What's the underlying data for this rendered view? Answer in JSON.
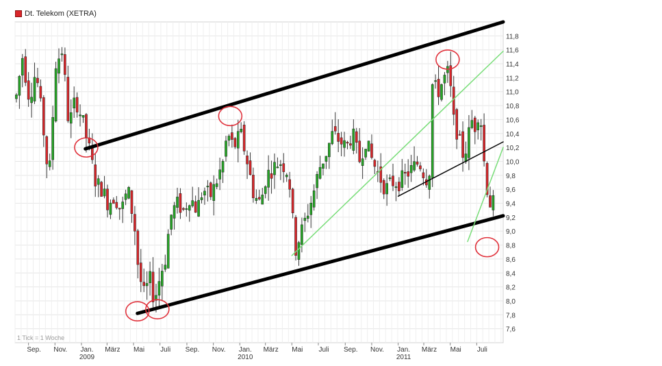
{
  "chart_data": {
    "type": "candlestick",
    "title": "",
    "legend": {
      "label": "Dt. Telekom (XETRA)",
      "placement": "top-left",
      "color": "#d9262a"
    },
    "footnote": "1 Tick = 1 Woche",
    "xlabel": "",
    "ylabel": "",
    "ylim": [
      7.4,
      12.0
    ],
    "y_ticks": [
      7.6,
      7.8,
      8.0,
      8.2,
      8.4,
      8.6,
      8.8,
      9.0,
      9.2,
      9.4,
      9.6,
      9.8,
      10.0,
      10.2,
      10.4,
      10.6,
      10.8,
      11.0,
      11.2,
      11.4,
      11.6,
      11.8
    ],
    "y_tick_labels": [
      "7,6",
      "7,8",
      "8,0",
      "8,2",
      "8,4",
      "8,6",
      "8,8",
      "9,0",
      "9,2",
      "9,4",
      "9,6",
      "9,8",
      "10,0",
      "10,2",
      "10,4",
      "10,6",
      "10,8",
      "11,0",
      "11,2",
      "11,4",
      "11,6",
      "11,8"
    ],
    "x_axis": {
      "period_start": "2008-08",
      "labels": [
        {
          "text": "Sep.",
          "date": "2008-09-01"
        },
        {
          "text": "Nov.",
          "date": "2008-11-01"
        },
        {
          "text": "Jan.",
          "date": "2009-01-01",
          "year": "2009"
        },
        {
          "text": "März",
          "date": "2009-03-01"
        },
        {
          "text": "Mai",
          "date": "2009-05-01"
        },
        {
          "text": "Juli",
          "date": "2009-07-01"
        },
        {
          "text": "Sep.",
          "date": "2009-09-01"
        },
        {
          "text": "Nov.",
          "date": "2009-11-01"
        },
        {
          "text": "Jan.",
          "date": "2010-01-01",
          "year": "2010"
        },
        {
          "text": "März",
          "date": "2010-03-01"
        },
        {
          "text": "Mai",
          "date": "2010-05-01"
        },
        {
          "text": "Juli",
          "date": "2010-07-01"
        },
        {
          "text": "Sep.",
          "date": "2010-09-01"
        },
        {
          "text": "Nov.",
          "date": "2010-11-01"
        },
        {
          "text": "Jan.",
          "date": "2011-01-01",
          "year": "2011"
        },
        {
          "text": "März",
          "date": "2011-03-01"
        },
        {
          "text": "Mai",
          "date": "2011-05-01"
        },
        {
          "text": "Juli",
          "date": "2011-07-01"
        }
      ]
    },
    "grid": true,
    "colors": {
      "up": "#26a626",
      "down": "#d9262a",
      "channel": "#000000",
      "trend_green": "#77dd77",
      "circle": "#e0303a",
      "grid": "#e6e6e6"
    },
    "price_anchors": [
      [
        "2008-08-10",
        10.9
      ],
      [
        "2008-08-25",
        11.5
      ],
      [
        "2008-09-10",
        10.9
      ],
      [
        "2008-09-25",
        11.3
      ],
      [
        "2008-10-10",
        10.6
      ],
      [
        "2008-10-25",
        9.7
      ],
      [
        "2008-11-10",
        11.4
      ],
      [
        "2008-11-25",
        11.6
      ],
      [
        "2008-12-10",
        10.5
      ],
      [
        "2008-12-25",
        10.9
      ],
      [
        "2009-01-10",
        10.6
      ],
      [
        "2009-01-25",
        10.2
      ],
      [
        "2009-02-10",
        9.7
      ],
      [
        "2009-02-25",
        9.6
      ],
      [
        "2009-03-10",
        9.4
      ],
      [
        "2009-03-25",
        9.5
      ],
      [
        "2009-04-10",
        9.3
      ],
      [
        "2009-04-25",
        9.6
      ],
      [
        "2009-05-10",
        9.1
      ],
      [
        "2009-05-20",
        8.4
      ],
      [
        "2009-06-01",
        8.1
      ],
      [
        "2009-06-15",
        8.3
      ],
      [
        "2009-06-25",
        8.0
      ],
      [
        "2009-07-10",
        8.4
      ],
      [
        "2009-07-20",
        8.6
      ],
      [
        "2009-08-01",
        9.2
      ],
      [
        "2009-08-15",
        9.4
      ],
      [
        "2009-09-01",
        9.3
      ],
      [
        "2009-09-15",
        9.5
      ],
      [
        "2009-10-01",
        9.3
      ],
      [
        "2009-10-15",
        9.6
      ],
      [
        "2009-11-01",
        9.5
      ],
      [
        "2009-11-15",
        9.7
      ],
      [
        "2009-12-01",
        10.0
      ],
      [
        "2009-12-10",
        10.4
      ],
      [
        "2009-12-25",
        10.2
      ],
      [
        "2010-01-10",
        10.4
      ],
      [
        "2010-01-25",
        10.0
      ],
      [
        "2010-02-10",
        9.5
      ],
      [
        "2010-02-25",
        9.4
      ],
      [
        "2010-03-10",
        9.8
      ],
      [
        "2010-03-25",
        9.9
      ],
      [
        "2010-04-10",
        10.0
      ],
      [
        "2010-04-25",
        9.9
      ],
      [
        "2010-05-05",
        9.6
      ],
      [
        "2010-05-15",
        8.7
      ],
      [
        "2010-05-25",
        8.9
      ],
      [
        "2010-06-10",
        9.2
      ],
      [
        "2010-06-25",
        9.5
      ],
      [
        "2010-07-10",
        9.9
      ],
      [
        "2010-07-25",
        10.1
      ],
      [
        "2010-08-10",
        10.4
      ],
      [
        "2010-08-25",
        10.3
      ],
      [
        "2010-09-10",
        10.2
      ],
      [
        "2010-09-25",
        10.4
      ],
      [
        "2010-10-10",
        10.0
      ],
      [
        "2010-10-25",
        10.3
      ],
      [
        "2010-11-10",
        10.0
      ],
      [
        "2010-11-25",
        9.8
      ],
      [
        "2010-12-10",
        9.6
      ],
      [
        "2010-12-25",
        9.7
      ],
      [
        "2011-01-10",
        9.7
      ],
      [
        "2011-01-25",
        9.8
      ],
      [
        "2011-02-10",
        9.9
      ],
      [
        "2011-02-25",
        10.0
      ],
      [
        "2011-03-10",
        9.8
      ],
      [
        "2011-03-20",
        9.7
      ],
      [
        "2011-03-28",
        11.1
      ],
      [
        "2011-04-10",
        11.0
      ],
      [
        "2011-04-25",
        11.2
      ],
      [
        "2011-05-05",
        11.3
      ],
      [
        "2011-05-15",
        10.6
      ],
      [
        "2011-05-25",
        10.4
      ],
      [
        "2011-06-05",
        10.1
      ],
      [
        "2011-06-15",
        10.2
      ],
      [
        "2011-06-25",
        10.6
      ],
      [
        "2011-07-05",
        10.5
      ],
      [
        "2011-07-15",
        10.8
      ],
      [
        "2011-07-25",
        10.0
      ],
      [
        "2011-08-05",
        9.4
      ]
    ],
    "trend_lines": [
      {
        "name": "upper-channel",
        "style": "thick",
        "color": "#000000",
        "points": [
          [
            "2009-01-10",
            10.18
          ],
          [
            "2011-08-31",
            12.0
          ]
        ]
      },
      {
        "name": "lower-channel",
        "style": "thick",
        "color": "#000000",
        "points": [
          [
            "2009-05-10",
            7.82
          ],
          [
            "2011-08-31",
            9.22
          ]
        ]
      },
      {
        "name": "mid-line",
        "style": "thin",
        "color": "#000000",
        "points": [
          [
            "2011-01-01",
            9.5
          ],
          [
            "2011-08-31",
            10.28
          ]
        ]
      },
      {
        "name": "green-1",
        "style": "thin",
        "color": "#77dd77",
        "points": [
          [
            "2010-05-01",
            8.65
          ],
          [
            "2011-08-31",
            11.58
          ]
        ]
      },
      {
        "name": "green-2",
        "style": "thin",
        "color": "#77dd77",
        "points": [
          [
            "2011-06-10",
            8.85
          ],
          [
            "2011-08-31",
            10.2
          ]
        ]
      }
    ],
    "annotations": [
      {
        "type": "circle",
        "date": "2009-01-12",
        "value": 10.2
      },
      {
        "type": "circle",
        "date": "2009-05-10",
        "value": 7.85
      },
      {
        "type": "circle",
        "date": "2009-06-25",
        "value": 7.88
      },
      {
        "type": "circle",
        "date": "2009-12-10",
        "value": 10.65
      },
      {
        "type": "circle",
        "date": "2011-04-25",
        "value": 11.46
      },
      {
        "type": "circle",
        "date": "2011-07-25",
        "value": 8.77
      }
    ]
  }
}
